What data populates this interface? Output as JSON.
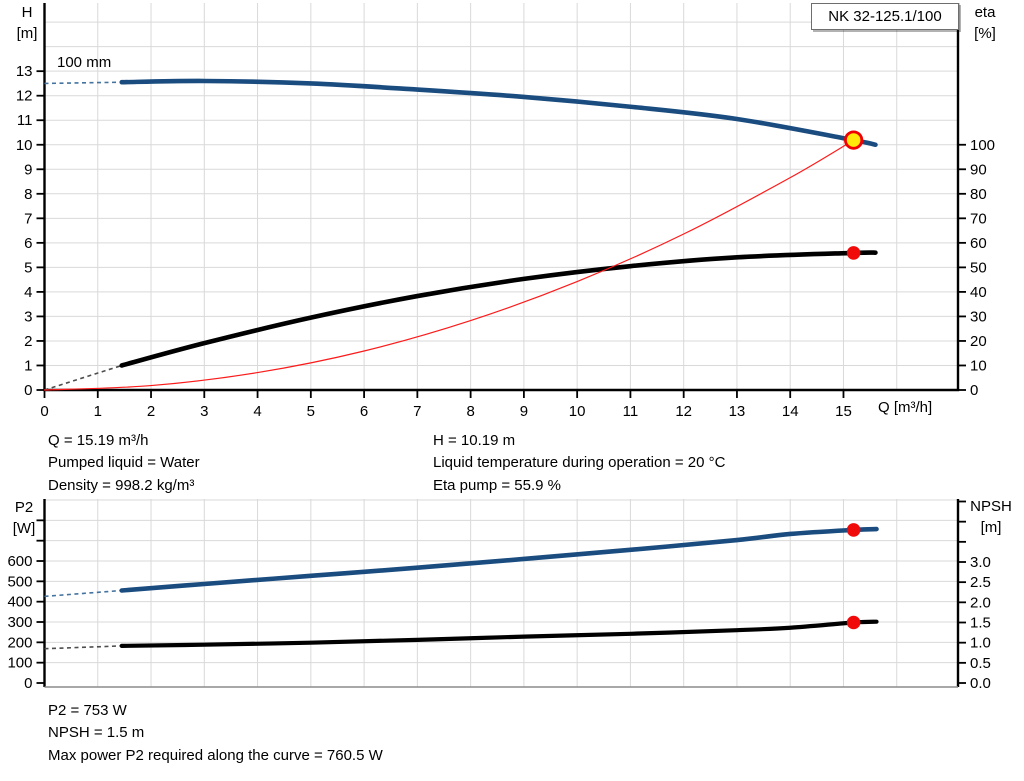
{
  "pump_model": "NK 32-125.1/100",
  "impeller_label": "100 mm",
  "axes": {
    "top": {
      "left_title": [
        "H",
        "[m]"
      ],
      "right_title": [
        "eta",
        "[%]"
      ],
      "x_title": "Q [m³/h]"
    },
    "bottom": {
      "left_title": [
        "P2",
        "[W]"
      ],
      "right_title": [
        "NPSH",
        "[m]"
      ]
    }
  },
  "info_top": {
    "left": [
      "Q = 15.19 m³/h",
      "Pumped liquid = Water",
      "Density = 998.2 kg/m³"
    ],
    "right": [
      "H = 10.19 m",
      "Liquid temperature during operation = 20 °C",
      "Eta pump = 55.9 %"
    ]
  },
  "info_bottom": [
    "P2 = 753 W",
    "NPSH = 1.5 m",
    "Max power P2 required along the curve = 760.5 W"
  ],
  "colors": {
    "curve_blue": "#1a4c80",
    "curve_black": "#000000",
    "system_red": "#ff1a1a",
    "grid": "#d9d9d9",
    "axis": "#000000",
    "frame_gray": "#8c8c8c",
    "duty_fill": "#ffe80a",
    "duty_ring": "#f00000",
    "dot_red": "#f00a0a",
    "lead_blue": "#44739f",
    "lead_gray": "#4d4d4d"
  },
  "duty_point": {
    "Q_m3h": 15.19,
    "H_m": 10.19,
    "eta_pct": 55.9,
    "P2_W": 753,
    "NPSH_m": 1.5,
    "max_P2_W": 760.5
  },
  "chart_data": [
    {
      "type": "line",
      "title": "NK 32-125.1/100",
      "xlabel": "Q [m³/h]",
      "ylabel_left": "H [m]",
      "ylabel_right": "eta [%]",
      "grid": true,
      "xlim": [
        0,
        17.15
      ],
      "ylim_left": [
        0,
        15.78
      ],
      "ylim_right": [
        0,
        157.8
      ],
      "x_ticks": [
        [
          0,
          "0"
        ],
        [
          1,
          "1"
        ],
        [
          2,
          "2"
        ],
        [
          3,
          "3"
        ],
        [
          4,
          "4"
        ],
        [
          5,
          "5"
        ],
        [
          6,
          "6"
        ],
        [
          7,
          "7"
        ],
        [
          8,
          "8"
        ],
        [
          9,
          "9"
        ],
        [
          10,
          "10"
        ],
        [
          11,
          "11"
        ],
        [
          12,
          "12"
        ],
        [
          13,
          "13"
        ],
        [
          14,
          "14"
        ],
        [
          15,
          "15"
        ]
      ],
      "y_left_ticks": [
        [
          0,
          "0"
        ],
        [
          1,
          "1"
        ],
        [
          2,
          "2"
        ],
        [
          3,
          "3"
        ],
        [
          4,
          "4"
        ],
        [
          5,
          "5"
        ],
        [
          6,
          "6"
        ],
        [
          7,
          "7"
        ],
        [
          8,
          "8"
        ],
        [
          9,
          "9"
        ],
        [
          10,
          "10"
        ],
        [
          11,
          "11"
        ],
        [
          12,
          "12"
        ],
        [
          13,
          "13"
        ]
      ],
      "y_right_ticks": [
        [
          0,
          "0"
        ],
        [
          10,
          "10"
        ],
        [
          20,
          "20"
        ],
        [
          30,
          "30"
        ],
        [
          40,
          "40"
        ],
        [
          50,
          "50"
        ],
        [
          60,
          "60"
        ],
        [
          70,
          "70"
        ],
        [
          80,
          "80"
        ],
        [
          90,
          "90"
        ],
        [
          100,
          "100"
        ]
      ],
      "grid_x": [
        1,
        2,
        3,
        4,
        5,
        6,
        7,
        8,
        9,
        10,
        11,
        12,
        13,
        14,
        15,
        16
      ],
      "grid_y": [
        1,
        2,
        3,
        4,
        5,
        6,
        7,
        8,
        9,
        10,
        11,
        12,
        13,
        14,
        15
      ],
      "series": [
        {
          "name": "head-curve",
          "axis": "left",
          "color": "#1a4c80",
          "width": 4.6,
          "lead_color": "#44739f",
          "lead_dash": [
            [
              0,
              12.5
            ],
            [
              1.45,
              12.55
            ]
          ],
          "points": [
            [
              1.45,
              12.55
            ],
            [
              3,
              12.6
            ],
            [
              5,
              12.5
            ],
            [
              7,
              12.25
            ],
            [
              9,
              11.95
            ],
            [
              11,
              11.55
            ],
            [
              13,
              11.05
            ],
            [
              15.19,
              10.19
            ],
            [
              15.6,
              10.0
            ]
          ]
        },
        {
          "name": "efficiency-curve",
          "axis": "right",
          "color": "#000000",
          "width": 4.6,
          "lead_color": "#4d4d4d",
          "lead_dash": [
            [
              0,
              0
            ],
            [
              1.45,
              10.0
            ]
          ],
          "points": [
            [
              1.45,
              10.0
            ],
            [
              3,
              19.1
            ],
            [
              5,
              29.5
            ],
            [
              7,
              38.3
            ],
            [
              9,
              45.3
            ],
            [
              11,
              50.5
            ],
            [
              13,
              54.1
            ],
            [
              15.19,
              55.9
            ],
            [
              15.6,
              56.0
            ]
          ]
        },
        {
          "name": "system-curve",
          "axis": "left",
          "color": "#ff1a1a",
          "width": 1.2,
          "points": [
            [
              0,
              0
            ],
            [
              2,
              0.18
            ],
            [
              4,
              0.71
            ],
            [
              6,
              1.59
            ],
            [
              8,
              2.83
            ],
            [
              10,
              4.42
            ],
            [
              12,
              6.36
            ],
            [
              14,
              8.66
            ],
            [
              15.19,
              10.19
            ]
          ]
        }
      ],
      "markers": [
        {
          "shape": "circle-yellow",
          "Q": 15.19,
          "value": 10.19,
          "axis": "left"
        },
        {
          "shape": "dot-red",
          "Q": 15.19,
          "value": 55.9,
          "axis": "right"
        }
      ]
    },
    {
      "type": "line",
      "title": "",
      "xlabel": "",
      "ylabel_left": "P2 [W]",
      "ylabel_right": "NPSH [m]",
      "grid": true,
      "xlim": [
        0,
        17.15
      ],
      "ylim_left": [
        0,
        905
      ],
      "ylim_right": [
        0,
        4.562
      ],
      "x_ticks": [],
      "y_left_ticks": [
        [
          0,
          "0"
        ],
        [
          100,
          "100"
        ],
        [
          200,
          "200"
        ],
        [
          300,
          "300"
        ],
        [
          400,
          "400"
        ],
        [
          500,
          "500"
        ],
        [
          600,
          "600"
        ],
        [
          700,
          ""
        ],
        [
          800,
          ""
        ]
      ],
      "y_right_ticks": [
        [
          0,
          "0.0"
        ],
        [
          0.5,
          "0.5"
        ],
        [
          1,
          "1.0"
        ],
        [
          1.5,
          "1.5"
        ],
        [
          2,
          "2.0"
        ],
        [
          2.5,
          "2.5"
        ],
        [
          3,
          "3.0"
        ],
        [
          3.5,
          ""
        ],
        [
          4,
          ""
        ],
        [
          4.5,
          ""
        ]
      ],
      "grid_x": [
        1,
        2,
        3,
        4,
        5,
        6,
        7,
        8,
        9,
        10,
        11,
        12,
        13,
        14,
        15,
        16
      ],
      "grid_y": [
        100,
        200,
        300,
        400,
        500,
        600,
        700,
        800,
        900
      ],
      "series": [
        {
          "name": "power-p2-curve",
          "axis": "left",
          "color": "#1a4c80",
          "width": 4.6,
          "lead_color": "#44739f",
          "lead_dash": [
            [
              0,
              426
            ],
            [
              1.45,
              455
            ]
          ],
          "points": [
            [
              1.45,
              455
            ],
            [
              3,
              487
            ],
            [
              5,
              527
            ],
            [
              7,
              567
            ],
            [
              9,
              610
            ],
            [
              11,
              655
            ],
            [
              13,
              703
            ],
            [
              14,
              733
            ],
            [
              15.19,
              753
            ],
            [
              15.62,
              757
            ]
          ]
        },
        {
          "name": "npsh-curve",
          "axis": "right",
          "color": "#000000",
          "width": 4.2,
          "lead_color": "#4d4d4d",
          "lead_dash": [
            [
              0,
              0.85
            ],
            [
              1.45,
              0.92
            ]
          ],
          "points": [
            [
              1.45,
              0.92
            ],
            [
              3,
              0.95
            ],
            [
              5,
              1.0
            ],
            [
              7,
              1.07
            ],
            [
              9,
              1.15
            ],
            [
              11,
              1.22
            ],
            [
              13,
              1.31
            ],
            [
              14,
              1.37
            ],
            [
              15.19,
              1.5
            ],
            [
              15.62,
              1.52
            ]
          ]
        }
      ],
      "markers": [
        {
          "shape": "dot-red",
          "Q": 15.19,
          "value": 753,
          "axis": "left"
        },
        {
          "shape": "dot-red",
          "Q": 15.19,
          "value": 1.5,
          "axis": "right"
        }
      ]
    }
  ]
}
